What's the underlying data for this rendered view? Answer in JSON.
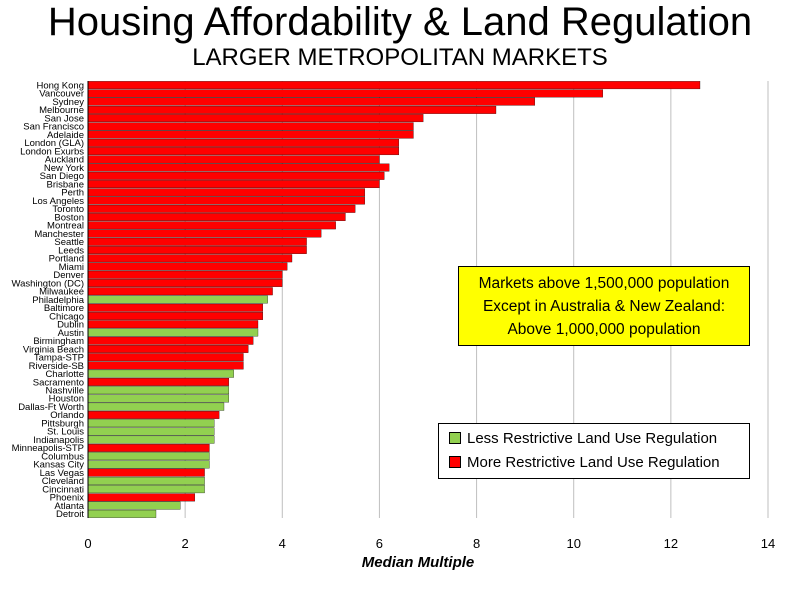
{
  "title": "Housing Affordability & Land Regulation",
  "subtitle": "LARGER METROPOLITAN MARKETS",
  "annotation": {
    "lines": [
      "Markets above 1,500,000 population",
      "Except in Australia & New Zealand:",
      "Above 1,000,000 population"
    ]
  },
  "legend": {
    "less": {
      "label": "Less Restrictive Land Use Regulation",
      "color": "#92d050"
    },
    "more": {
      "label": "More Restrictive Land Use Regulation",
      "color": "#ff0000"
    }
  },
  "chart_data": {
    "type": "bar",
    "orientation": "horizontal",
    "xlabel": "Median Multiple",
    "xlim": [
      0,
      14
    ],
    "xticks": [
      "0",
      "2",
      "4",
      "6",
      "8",
      "10",
      "12",
      "14"
    ],
    "grid": "vertical",
    "legend_position": "lower-right",
    "categories": [
      "Hong Kong",
      "Vancouver",
      "Sydney",
      "Melbourne",
      "San Jose",
      "San Francisco",
      "Adelaide",
      "London (GLA)",
      "London Exurbs",
      "Auckland",
      "New York",
      "San Diego",
      "Brisbane",
      "Perth",
      "Los Angeles",
      "Toronto",
      "Boston",
      "Montreal",
      "Manchester",
      "Seattle",
      "Leeds",
      "Portland",
      "Miami",
      "Denver",
      "Washington (DC)",
      "Milwaukee",
      "Philadelphia",
      "Baltimore",
      "Chicago",
      "Dublin",
      "Austin",
      "Birmingham",
      "Virginia Beach",
      "Tampa-STP",
      "Riverside-SB",
      "Charlotte",
      "Sacramento",
      "Nashville",
      "Houston",
      "Dallas-Ft Worth",
      "Orlando",
      "Pittsburgh",
      "St. Louis",
      "Indianapolis",
      "Minneapolis-STP",
      "Columbus",
      "Kansas City",
      "Las Vegas",
      "Cleveland",
      "Cincinnati",
      "Phoenix",
      "Atlanta",
      "Detroit"
    ],
    "values": [
      12.6,
      10.6,
      9.2,
      8.4,
      6.9,
      6.7,
      6.7,
      6.4,
      6.4,
      6.0,
      6.2,
      6.1,
      6.0,
      5.7,
      5.7,
      5.5,
      5.3,
      5.1,
      4.8,
      4.5,
      4.5,
      4.2,
      4.1,
      4.0,
      4.0,
      3.8,
      3.7,
      3.6,
      3.6,
      3.5,
      3.5,
      3.4,
      3.3,
      3.2,
      3.2,
      3.0,
      2.9,
      2.9,
      2.9,
      2.8,
      2.7,
      2.6,
      2.6,
      2.6,
      2.5,
      2.5,
      2.5,
      2.4,
      2.4,
      2.4,
      2.2,
      1.9,
      1.4
    ],
    "regulation": [
      "more",
      "more",
      "more",
      "more",
      "more",
      "more",
      "more",
      "more",
      "more",
      "more",
      "more",
      "more",
      "more",
      "more",
      "more",
      "more",
      "more",
      "more",
      "more",
      "more",
      "more",
      "more",
      "more",
      "more",
      "more",
      "more",
      "less",
      "more",
      "more",
      "more",
      "less",
      "more",
      "more",
      "more",
      "more",
      "less",
      "more",
      "less",
      "less",
      "less",
      "more",
      "less",
      "less",
      "less",
      "more",
      "less",
      "less",
      "more",
      "less",
      "less",
      "more",
      "less",
      "less"
    ]
  }
}
